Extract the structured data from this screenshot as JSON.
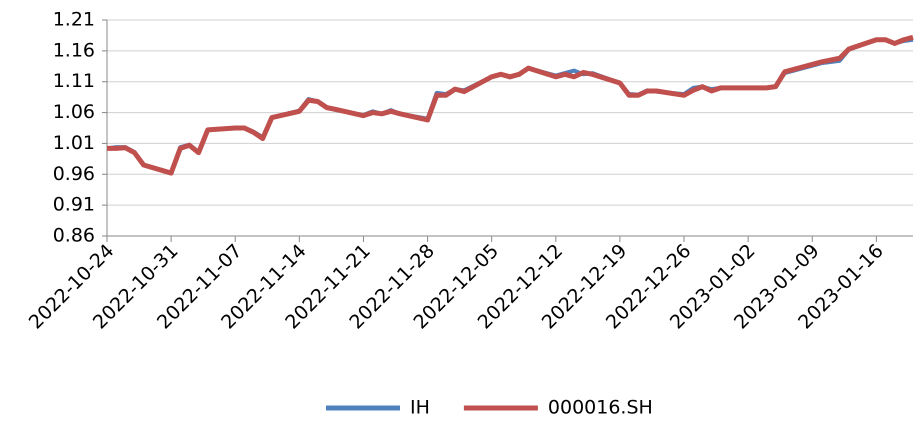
{
  "chart_data": {
    "type": "line",
    "x": [
      "2022-10-24",
      "2022-10-25",
      "2022-10-26",
      "2022-10-27",
      "2022-10-28",
      "2022-10-31",
      "2022-11-01",
      "2022-11-02",
      "2022-11-03",
      "2022-11-04",
      "2022-11-07",
      "2022-11-08",
      "2022-11-09",
      "2022-11-10",
      "2022-11-11",
      "2022-11-14",
      "2022-11-15",
      "2022-11-16",
      "2022-11-17",
      "2022-11-18",
      "2022-11-21",
      "2022-11-22",
      "2022-11-23",
      "2022-11-24",
      "2022-11-25",
      "2022-11-28",
      "2022-11-29",
      "2022-11-30",
      "2022-12-01",
      "2022-12-02",
      "2022-12-05",
      "2022-12-06",
      "2022-12-07",
      "2022-12-08",
      "2022-12-09",
      "2022-12-12",
      "2022-12-13",
      "2022-12-14",
      "2022-12-15",
      "2022-12-16",
      "2022-12-19",
      "2022-12-20",
      "2022-12-21",
      "2022-12-22",
      "2022-12-23",
      "2022-12-26",
      "2022-12-27",
      "2022-12-28",
      "2022-12-29",
      "2022-12-30",
      "2023-01-03",
      "2023-01-04",
      "2023-01-05",
      "2023-01-06",
      "2023-01-09",
      "2023-01-10",
      "2023-01-11",
      "2023-01-12",
      "2023-01-13",
      "2023-01-16",
      "2023-01-17",
      "2023-01-18",
      "2023-01-19",
      "2023-01-20"
    ],
    "series": [
      {
        "name": "IH",
        "color": "#4f81bd",
        "values": [
          1.002,
          1.004,
          1.004,
          0.996,
          0.975,
          0.962,
          1.004,
          1.008,
          0.996,
          1.032,
          1.035,
          1.035,
          1.029,
          1.02,
          1.052,
          1.063,
          1.082,
          1.078,
          1.068,
          1.064,
          1.056,
          1.062,
          1.058,
          1.064,
          1.058,
          1.05,
          1.092,
          1.09,
          1.098,
          1.096,
          1.118,
          1.122,
          1.117,
          1.122,
          1.132,
          1.12,
          1.124,
          1.128,
          1.122,
          1.124,
          1.108,
          1.09,
          1.089,
          1.096,
          1.094,
          1.09,
          1.1,
          1.102,
          1.098,
          1.1,
          1.1,
          1.1,
          1.103,
          1.124,
          1.136,
          1.14,
          1.142,
          1.144,
          1.162,
          1.178,
          1.178,
          1.172,
          1.176,
          1.178
        ]
      },
      {
        "name": "000016.SH",
        "color": "#c0504d",
        "values": [
          1.002,
          1.002,
          1.003,
          0.995,
          0.975,
          0.962,
          1.002,
          1.007,
          0.995,
          1.032,
          1.035,
          1.035,
          1.028,
          1.018,
          1.052,
          1.062,
          1.08,
          1.078,
          1.068,
          1.065,
          1.055,
          1.06,
          1.058,
          1.062,
          1.058,
          1.048,
          1.088,
          1.088,
          1.098,
          1.094,
          1.118,
          1.122,
          1.118,
          1.122,
          1.132,
          1.118,
          1.122,
          1.118,
          1.125,
          1.122,
          1.108,
          1.088,
          1.088,
          1.095,
          1.095,
          1.088,
          1.096,
          1.102,
          1.095,
          1.1,
          1.1,
          1.1,
          1.102,
          1.126,
          1.138,
          1.142,
          1.145,
          1.148,
          1.163,
          1.178,
          1.178,
          1.172,
          1.178,
          1.182
        ]
      }
    ],
    "xlim": [
      "2022-10-24",
      "2023-01-20"
    ],
    "xticks": [
      "2022-10-24",
      "2022-10-31",
      "2022-11-07",
      "2022-11-14",
      "2022-11-21",
      "2022-11-28",
      "2022-12-05",
      "2022-12-12",
      "2022-12-19",
      "2022-12-26",
      "2023-01-02",
      "2023-01-09",
      "2023-01-16"
    ],
    "ylim": [
      0.86,
      1.21
    ],
    "yticks": [
      {
        "value": 0.86,
        "label": "0.86"
      },
      {
        "value": 0.91,
        "label": "0.91"
      },
      {
        "value": 0.96,
        "label": "0.96"
      },
      {
        "value": 1.01,
        "label": "1.01"
      },
      {
        "value": 1.06,
        "label": "1.06"
      },
      {
        "value": 1.11,
        "label": "1.11"
      },
      {
        "value": 1.16,
        "label": "1.16"
      },
      {
        "value": 1.21,
        "label": "1.21"
      }
    ],
    "grid": true,
    "legend": "bottom"
  }
}
